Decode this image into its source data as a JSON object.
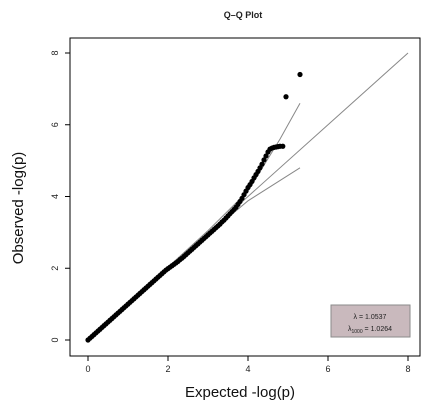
{
  "chart_data": {
    "type": "scatter",
    "title": "Q–Q Plot",
    "xlabel": "Expected -log(p)",
    "ylabel": "Observed -log(p)",
    "xlim": [
      0,
      8
    ],
    "ylim": [
      0,
      8
    ],
    "x_ticks": [
      "0",
      "2",
      "4",
      "6",
      "8"
    ],
    "y_ticks": [
      "0",
      "2",
      "4",
      "6",
      "8"
    ],
    "grid": false,
    "points": [
      [
        0.0,
        0.0
      ],
      [
        0.05,
        0.05
      ],
      [
        0.1,
        0.1
      ],
      [
        0.15,
        0.15
      ],
      [
        0.2,
        0.2
      ],
      [
        0.25,
        0.25
      ],
      [
        0.3,
        0.3
      ],
      [
        0.35,
        0.35
      ],
      [
        0.4,
        0.4
      ],
      [
        0.45,
        0.45
      ],
      [
        0.5,
        0.5
      ],
      [
        0.55,
        0.55
      ],
      [
        0.6,
        0.6
      ],
      [
        0.65,
        0.65
      ],
      [
        0.7,
        0.7
      ],
      [
        0.75,
        0.75
      ],
      [
        0.8,
        0.8
      ],
      [
        0.85,
        0.85
      ],
      [
        0.9,
        0.9
      ],
      [
        0.95,
        0.95
      ],
      [
        1.0,
        1.0
      ],
      [
        1.05,
        1.05
      ],
      [
        1.1,
        1.1
      ],
      [
        1.15,
        1.15
      ],
      [
        1.2,
        1.2
      ],
      [
        1.25,
        1.25
      ],
      [
        1.3,
        1.3
      ],
      [
        1.35,
        1.35
      ],
      [
        1.4,
        1.4
      ],
      [
        1.45,
        1.45
      ],
      [
        1.5,
        1.5
      ],
      [
        1.55,
        1.55
      ],
      [
        1.6,
        1.6
      ],
      [
        1.65,
        1.65
      ],
      [
        1.7,
        1.7
      ],
      [
        1.75,
        1.75
      ],
      [
        1.8,
        1.8
      ],
      [
        1.85,
        1.85
      ],
      [
        1.9,
        1.9
      ],
      [
        1.95,
        1.95
      ],
      [
        2.0,
        1.99
      ],
      [
        2.05,
        2.03
      ],
      [
        2.1,
        2.07
      ],
      [
        2.15,
        2.11
      ],
      [
        2.2,
        2.15
      ],
      [
        2.25,
        2.19
      ],
      [
        2.3,
        2.24
      ],
      [
        2.35,
        2.28
      ],
      [
        2.4,
        2.33
      ],
      [
        2.45,
        2.38
      ],
      [
        2.5,
        2.43
      ],
      [
        2.55,
        2.48
      ],
      [
        2.6,
        2.53
      ],
      [
        2.65,
        2.58
      ],
      [
        2.7,
        2.63
      ],
      [
        2.75,
        2.68
      ],
      [
        2.8,
        2.73
      ],
      [
        2.85,
        2.78
      ],
      [
        2.9,
        2.83
      ],
      [
        2.95,
        2.88
      ],
      [
        3.0,
        2.93
      ],
      [
        3.05,
        2.98
      ],
      [
        3.1,
        3.03
      ],
      [
        3.15,
        3.08
      ],
      [
        3.2,
        3.13
      ],
      [
        3.25,
        3.18
      ],
      [
        3.3,
        3.23
      ],
      [
        3.35,
        3.29
      ],
      [
        3.4,
        3.34
      ],
      [
        3.45,
        3.4
      ],
      [
        3.5,
        3.46
      ],
      [
        3.55,
        3.52
      ],
      [
        3.6,
        3.58
      ],
      [
        3.65,
        3.64
      ],
      [
        3.7,
        3.7
      ],
      [
        3.75,
        3.78
      ],
      [
        3.8,
        3.86
      ],
      [
        3.85,
        3.95
      ],
      [
        3.9,
        4.05
      ],
      [
        3.95,
        4.15
      ],
      [
        4.0,
        4.25
      ],
      [
        4.05,
        4.33
      ],
      [
        4.1,
        4.42
      ],
      [
        4.15,
        4.52
      ],
      [
        4.2,
        4.61
      ],
      [
        4.25,
        4.7
      ],
      [
        4.3,
        4.8
      ],
      [
        4.35,
        4.9
      ],
      [
        4.4,
        5.02
      ],
      [
        4.45,
        5.13
      ],
      [
        4.5,
        5.24
      ],
      [
        4.55,
        5.32
      ],
      [
        4.6,
        5.35
      ],
      [
        4.65,
        5.37
      ],
      [
        4.7,
        5.38
      ],
      [
        4.75,
        5.39
      ],
      [
        4.8,
        5.4
      ],
      [
        4.87,
        5.4
      ],
      [
        4.95,
        6.78
      ],
      [
        5.3,
        7.4
      ]
    ],
    "reference_line": [
      [
        0,
        0
      ],
      [
        8,
        8
      ]
    ],
    "confidence_upper": [
      [
        0,
        0
      ],
      [
        1,
        1
      ],
      [
        2,
        2.03
      ],
      [
        3,
        3.05
      ],
      [
        4,
        4.15
      ],
      [
        4.8,
        5.6
      ],
      [
        5.3,
        6.6
      ]
    ],
    "confidence_lower": [
      [
        0,
        0
      ],
      [
        1,
        1
      ],
      [
        2,
        1.97
      ],
      [
        3,
        2.95
      ],
      [
        4,
        3.88
      ],
      [
        5.3,
        4.8
      ]
    ],
    "legend": {
      "position": "bottom-right",
      "lambda_label": "λ = 1.0537",
      "lambda_1000_symbol": "λ",
      "lambda_1000_sub": "1000",
      "lambda_1000_value": " = 1.0264"
    },
    "colors": {
      "points": "#000000",
      "lines": "#888888",
      "legend_bg": "#c9b9bd",
      "legend_border": "#8a8a8a",
      "axis": "#000000"
    }
  }
}
